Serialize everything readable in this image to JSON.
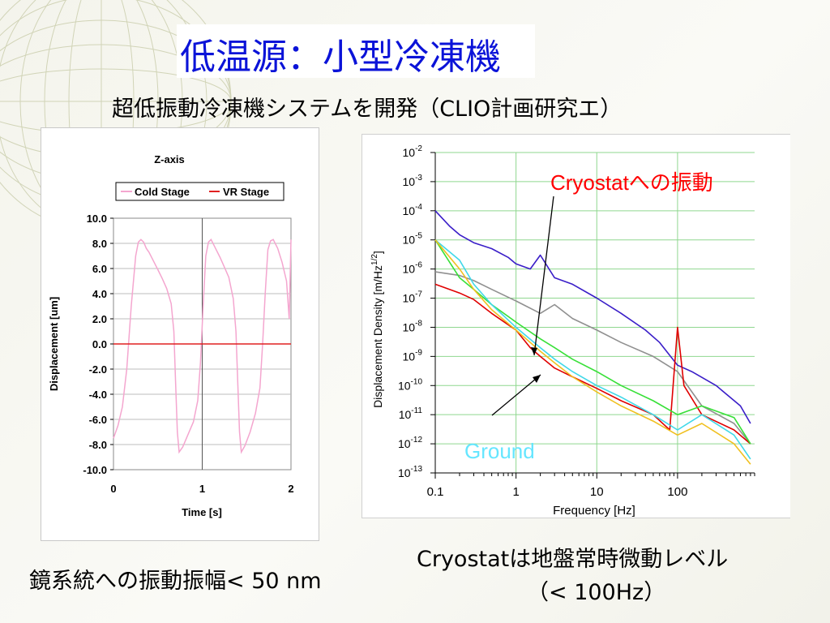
{
  "slide": {
    "title": "低温源：小型冷凍機",
    "subtitle": "超低振動冷凍機システムを開発（CLIO計画研究エ）",
    "bottom_left": "鏡系統への振動振幅< 50 nm",
    "bottom_right_line1": "Cryostatは地盤常時微動レベル",
    "bottom_right_line2": "（< 100Hz）"
  },
  "chart_data": [
    {
      "type": "line",
      "title": "Z-axis",
      "xlabel": "Time [s]",
      "ylabel": "Displacement [um]",
      "xlim": [
        0,
        2
      ],
      "ylim": [
        -10,
        10
      ],
      "x_ticks": [
        "0",
        "1",
        "2"
      ],
      "y_ticks": [
        "10.0",
        "8.0",
        "6.0",
        "4.0",
        "2.0",
        "0.0",
        "-2.0",
        "-4.0",
        "-6.0",
        "-8.0",
        "-10.0"
      ],
      "grid": true,
      "legend_position": "top",
      "series": [
        {
          "name": "Cold Stage",
          "color": "#f4a6cf",
          "x": [
            0,
            0.05,
            0.1,
            0.15,
            0.2,
            0.25,
            0.28,
            0.31,
            0.34,
            0.37,
            0.4,
            0.45,
            0.5,
            0.55,
            0.6,
            0.65,
            0.68,
            0.7,
            0.72,
            0.74,
            0.78,
            0.84,
            0.9,
            0.95,
            0.98,
            1.01,
            1.04,
            1.07,
            1.1,
            1.15,
            1.2,
            1.25,
            1.3,
            1.35,
            1.38,
            1.4,
            1.42,
            1.44,
            1.48,
            1.54,
            1.6,
            1.65,
            1.68,
            1.71,
            1.74,
            1.77,
            1.8,
            1.85,
            1.9,
            1.95,
            1.98,
            2.0
          ],
          "y": [
            -7.5,
            -6.5,
            -5.0,
            -2.0,
            3.0,
            7.0,
            8.1,
            8.3,
            8.1,
            7.6,
            7.3,
            6.6,
            5.9,
            5.2,
            4.4,
            3.2,
            1.0,
            -3.0,
            -7.0,
            -8.6,
            -8.2,
            -7.2,
            -6.2,
            -4.5,
            -1.5,
            3.0,
            7.0,
            8.1,
            8.3,
            7.6,
            6.9,
            6.1,
            5.3,
            3.6,
            1.0,
            -3.0,
            -7.0,
            -8.6,
            -8.1,
            -7.0,
            -5.5,
            -3.5,
            0.0,
            4.0,
            7.5,
            8.2,
            8.3,
            7.6,
            6.5,
            5.0,
            2.0,
            8.3
          ]
        },
        {
          "name": "VR Stage",
          "color": "#e02020",
          "x": [
            0,
            2
          ],
          "y": [
            0.0,
            0.0
          ]
        }
      ]
    },
    {
      "type": "line",
      "title": "",
      "xlabel": "Frequency [Hz]",
      "ylabel": "Displacement Density [m/Hz^1/2]",
      "x_scale": "log",
      "y_scale": "log",
      "xlim": [
        0.1,
        900
      ],
      "ylim": [
        1e-13,
        0.01
      ],
      "x_ticks": [
        "0.1",
        "1",
        "10",
        "100"
      ],
      "y_ticks": [
        "10-2",
        "10-3",
        "10-4",
        "10-5",
        "10-6",
        "10-7",
        "10-8",
        "10-9",
        "10-10",
        "10-11",
        "10-12",
        "10-13"
      ],
      "grid": true,
      "annotations": [
        {
          "text": "Cryostatへの振動",
          "color": "#ff0000"
        },
        {
          "text": "Ground",
          "color": "#66e6ff"
        }
      ],
      "series": [
        {
          "name": "blue",
          "color": "#3a1ec8",
          "x": [
            0.1,
            0.15,
            0.2,
            0.3,
            0.5,
            0.8,
            1,
            1.5,
            2,
            3,
            5,
            10,
            20,
            40,
            60,
            100,
            150,
            300,
            600,
            800
          ],
          "y": [
            0.0001,
            3e-05,
            1.5e-05,
            8e-06,
            5e-06,
            2.5e-06,
            1.5e-06,
            1e-06,
            3e-06,
            5e-07,
            3e-07,
            1e-07,
            3e-08,
            8e-09,
            3e-09,
            5e-10,
            3e-10,
            1e-10,
            2e-11,
            5e-12
          ]
        },
        {
          "name": "gray",
          "color": "#909090",
          "x": [
            0.1,
            0.2,
            0.3,
            0.5,
            1,
            2,
            3,
            5,
            10,
            20,
            50,
            100,
            200,
            500,
            800
          ],
          "y": [
            8e-07,
            6e-07,
            4e-07,
            2e-07,
            8e-08,
            3e-08,
            6e-08,
            2e-08,
            8e-09,
            3e-09,
            1e-09,
            3e-10,
            2e-11,
            5e-12,
            1e-12
          ]
        },
        {
          "name": "red",
          "color": "#e00000",
          "x": [
            0.1,
            0.2,
            0.3,
            0.5,
            1,
            1.5,
            2,
            3,
            5,
            10,
            20,
            50,
            80,
            100,
            120,
            200,
            500,
            800
          ],
          "y": [
            3e-07,
            1.5e-07,
            9e-08,
            3e-08,
            8e-09,
            2e-09,
            1e-09,
            4e-10,
            2e-10,
            8e-11,
            3e-11,
            1e-11,
            3e-12,
            1e-08,
            1e-10,
            1e-11,
            3e-12,
            1e-12
          ]
        },
        {
          "name": "green",
          "color": "#38e038",
          "x": [
            0.1,
            0.2,
            0.3,
            0.5,
            1,
            2,
            3,
            5,
            10,
            20,
            50,
            100,
            200,
            500,
            800
          ],
          "y": [
            1e-05,
            5e-07,
            2e-07,
            6e-08,
            1.5e-08,
            4e-09,
            2e-09,
            8e-10,
            3e-10,
            1e-10,
            3e-11,
            1e-11,
            2e-11,
            8e-12,
            1e-12
          ]
        },
        {
          "name": "cyan",
          "color": "#40d8e8",
          "x": [
            0.1,
            0.2,
            0.3,
            0.5,
            1,
            2,
            3,
            5,
            10,
            20,
            50,
            100,
            200,
            500,
            800
          ],
          "y": [
            1e-05,
            2e-06,
            3e-07,
            6e-08,
            1e-08,
            2e-09,
            8e-10,
            3e-10,
            1e-10,
            4e-11,
            1e-11,
            3e-12,
            1e-11,
            2e-12,
            3e-13
          ]
        },
        {
          "name": "yellow",
          "color": "#f0c020",
          "x": [
            0.1,
            0.2,
            0.3,
            0.5,
            1,
            2,
            3,
            5,
            10,
            20,
            50,
            100,
            200,
            500,
            800
          ],
          "y": [
            1e-05,
            1e-06,
            2e-07,
            4e-08,
            8e-09,
            1.5e-09,
            6e-10,
            2e-10,
            6e-11,
            2e-11,
            6e-12,
            2e-12,
            5e-12,
            1e-12,
            2e-13
          ]
        }
      ]
    }
  ]
}
